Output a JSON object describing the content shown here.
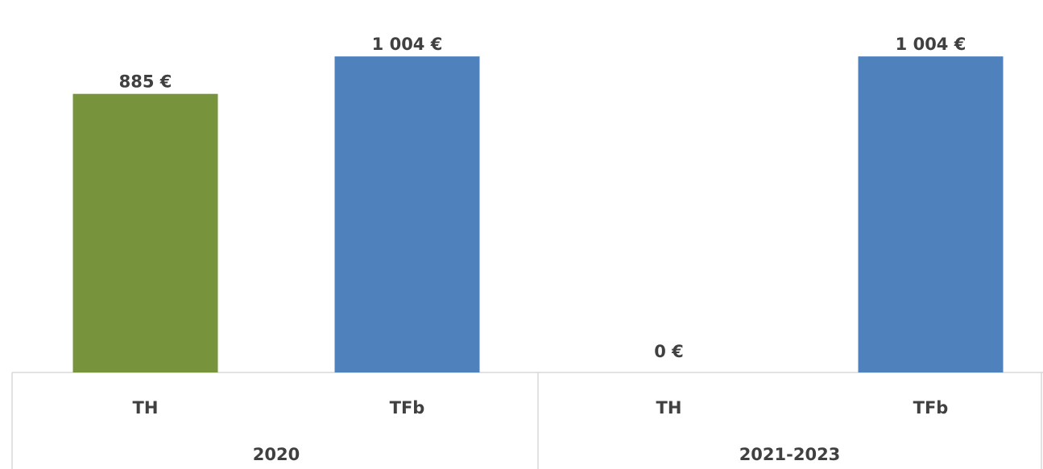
{
  "chart_data": {
    "type": "bar",
    "groups": [
      {
        "label": "2020",
        "categories": [
          "TH",
          "TFb"
        ],
        "values": [
          885,
          1004
        ],
        "value_labels": [
          "885 €",
          "1 004 €"
        ],
        "colors": [
          "#77933c",
          "#4f81bd"
        ]
      },
      {
        "label": "2021-2023",
        "categories": [
          "TH",
          "TFb"
        ],
        "values": [
          0,
          1004
        ],
        "value_labels": [
          "0 €",
          "1 004 €"
        ],
        "colors": [
          "#77933c",
          "#4f81bd"
        ]
      }
    ],
    "ylim": [
      0,
      1150
    ]
  }
}
